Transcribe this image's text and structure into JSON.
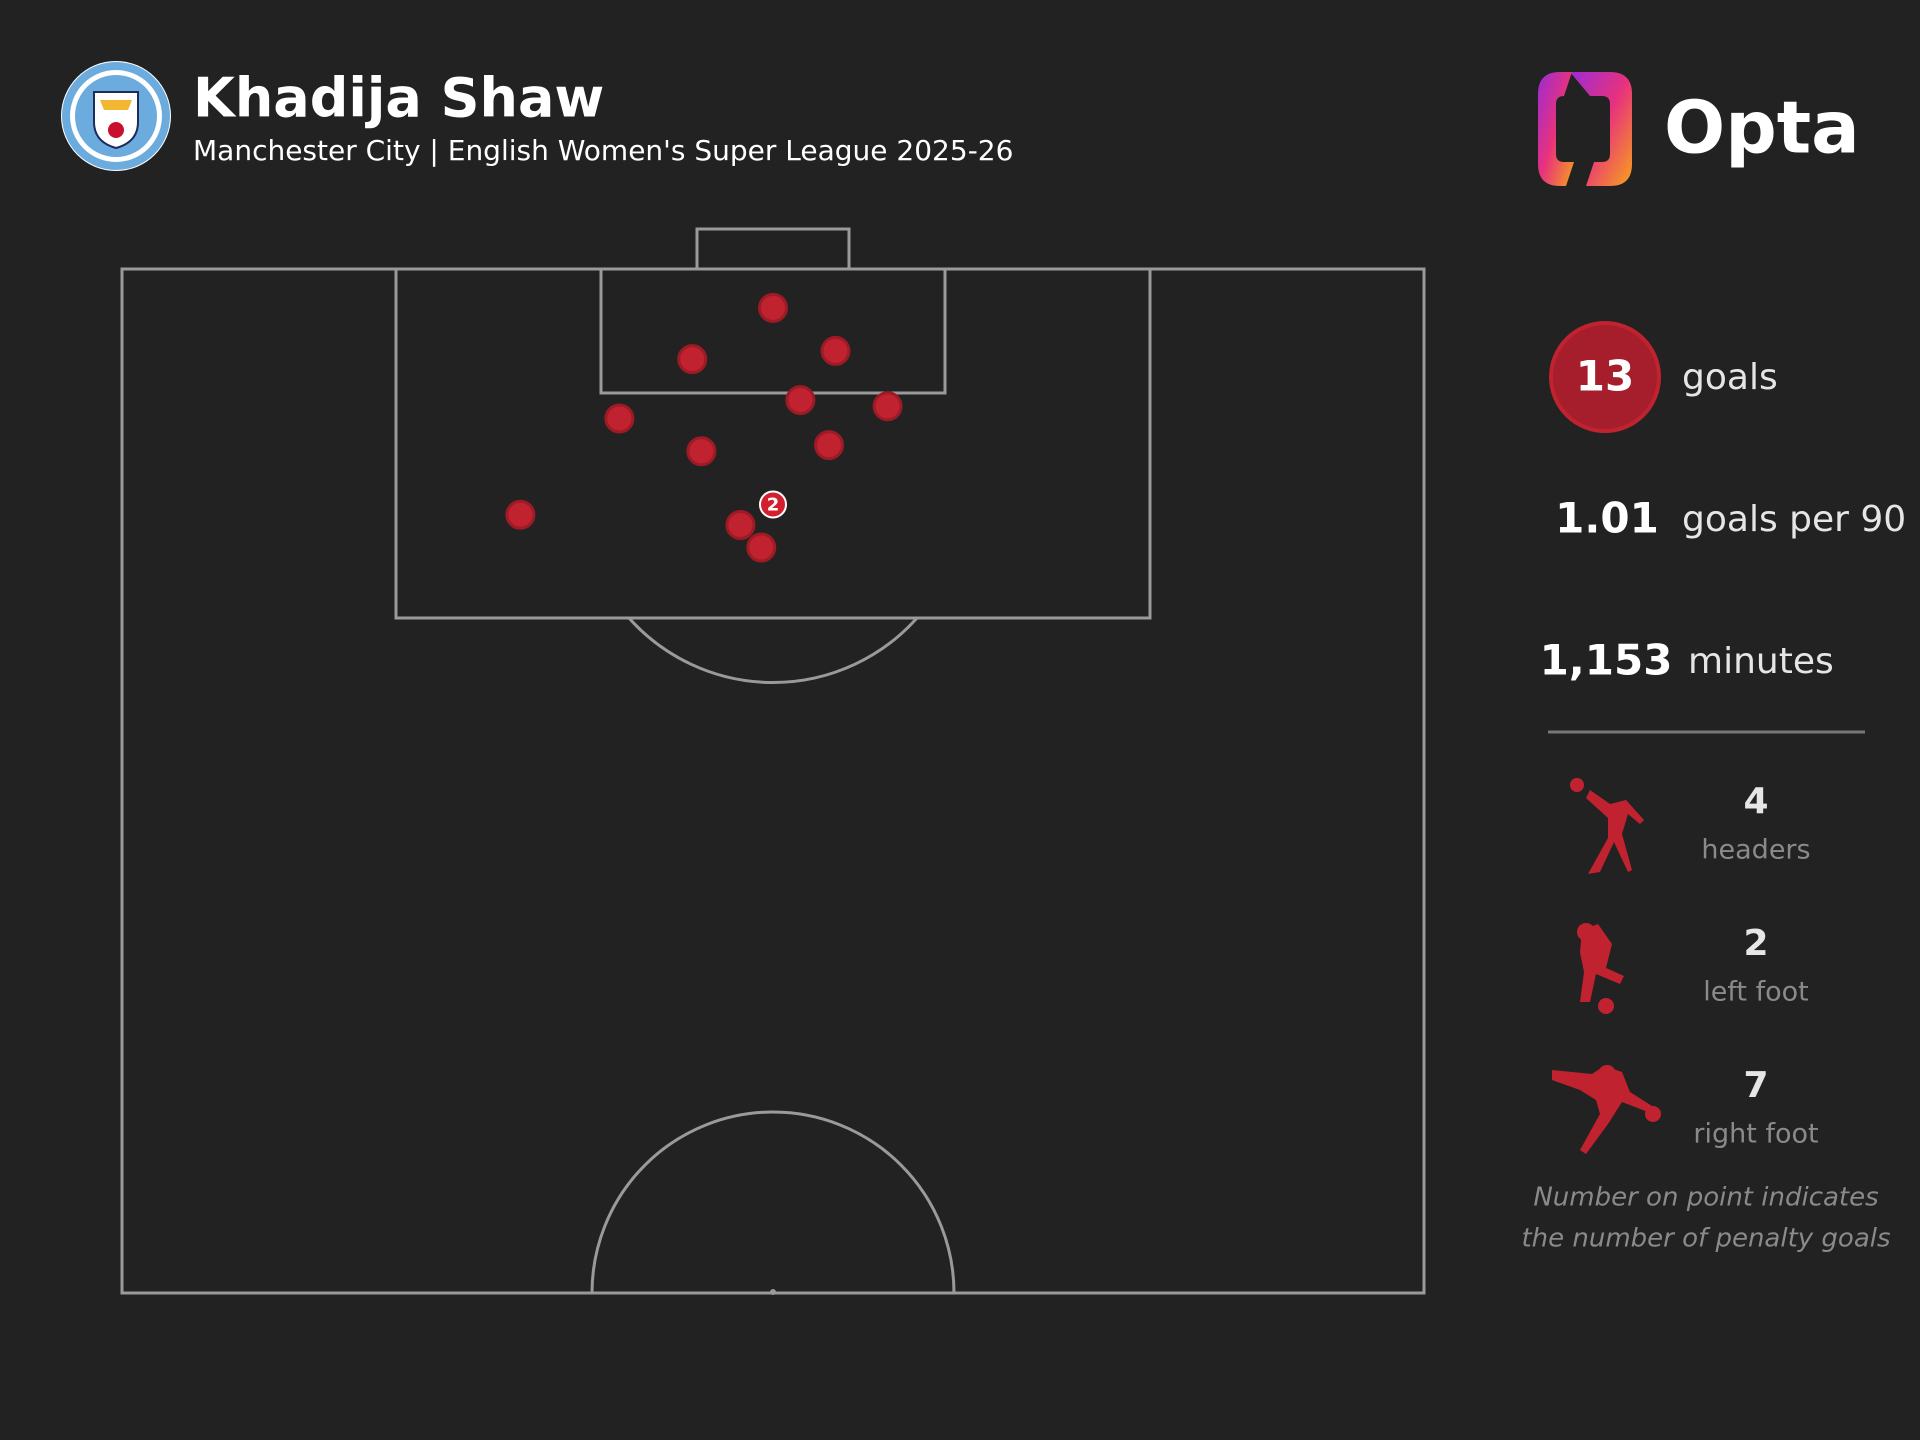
{
  "header": {
    "title": "Khadija Shaw",
    "subtitle": "Manchester City | English Women's Super League 2025-26",
    "brand": "Opta"
  },
  "chart_data": {
    "type": "shot-map",
    "color": "#c0232f",
    "x": [
      50.0,
      43.8,
      54.8,
      52.1,
      58.8,
      38.2,
      44.5,
      54.3,
      50.0,
      30.6,
      47.5,
      49.1
    ],
    "y": [
      98.1,
      95.6,
      96.0,
      93.6,
      93.3,
      92.7,
      91.1,
      91.4,
      88.5,
      88.0,
      87.5,
      86.4
    ],
    "goals": [
      1,
      1,
      1,
      1,
      1,
      1,
      1,
      1,
      2,
      1,
      1,
      1
    ]
  },
  "stats": {
    "goals": {
      "value": "13",
      "label": "goals"
    },
    "per90": {
      "value": "1.01",
      "label": "goals per 90"
    },
    "minutes": {
      "value": "1,153",
      "label": "minutes"
    },
    "headers": {
      "value": "4",
      "label": "headers"
    },
    "left": {
      "value": "2",
      "label": "left foot"
    },
    "right": {
      "value": "7",
      "label": "right foot"
    },
    "note": [
      "Number on point indicates",
      "the number of penalty goals"
    ]
  }
}
